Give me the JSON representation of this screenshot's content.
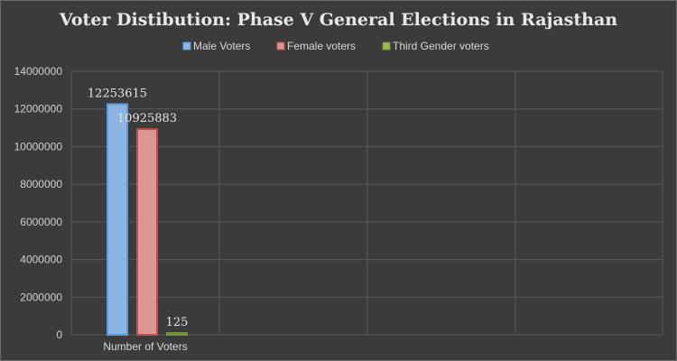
{
  "chart_data": {
    "type": "bar",
    "title": "Voter Distibution: Phase V General Elections in  Rajasthan",
    "categories": [
      "Number of Voters"
    ],
    "series": [
      {
        "name": "Male Voters",
        "values": [
          12253615
        ],
        "color": "#8db4e2",
        "edge": "#5b9bd5",
        "label": "12253615"
      },
      {
        "name": "Female voters",
        "values": [
          10925883
        ],
        "color": "#d99795",
        "edge": "#c0504d",
        "label": "10925883"
      },
      {
        "name": "Third Gender voters",
        "values": [
          125
        ],
        "color": "#9bbb59",
        "edge": "#76923c",
        "label": "125"
      }
    ],
    "ylim": [
      0,
      14000000
    ],
    "yticks": [
      "0",
      "2000000",
      "4000000",
      "6000000",
      "8000000",
      "10000000",
      "12000000",
      "14000000"
    ],
    "xlabel": "",
    "ylabel": "",
    "grid": true,
    "legend_position": "top-center",
    "background": "#3b3b3b"
  }
}
